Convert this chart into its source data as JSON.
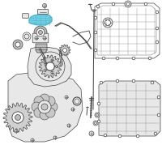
{
  "background_color": "#ffffff",
  "line_color": "#444444",
  "highlight_color": "#4ab8cc",
  "highlight_fill": "#70cce0",
  "gray_fill": "#cccccc",
  "light_gray": "#e8e8e8",
  "dark_gray": "#999999",
  "mid_gray": "#bbbbbb",
  "figsize": [
    2.0,
    2.0
  ],
  "dpi": 100
}
